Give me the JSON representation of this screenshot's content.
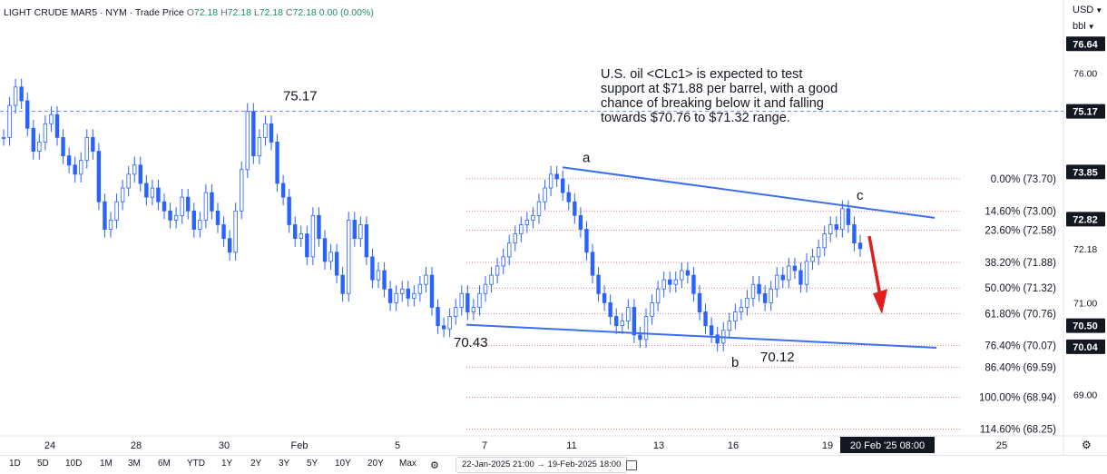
{
  "header": {
    "symbol": "LIGHT CRUDE MAR5 · NYM · Trade Price",
    "o_label": "O",
    "o": "72.18",
    "h_label": "H",
    "h": "72.18",
    "l_label": "L",
    "l": "72.18",
    "c_label": "C",
    "c": "72.18",
    "change": "0.00 (0.00%)"
  },
  "units": {
    "currency": "USD",
    "unit": "bbl"
  },
  "annotation": "U.S. oil <CLc1> is expected to test support at $71.88 per barrel, with a good chance of breaking below it and falling towards $70.76 to $71.32 range.",
  "toolbar": {
    "ranges": [
      "1D",
      "5D",
      "10D",
      "1M",
      "3M",
      "6M",
      "YTD",
      "1Y",
      "2Y",
      "3Y",
      "5Y",
      "10Y",
      "20Y",
      "Max"
    ],
    "date_range": "22-Jan-2025 21:00 → 19-Feb-2025 18:00"
  },
  "colors": {
    "candle": "#2962ff",
    "line": "#3b6ef0",
    "fib": "#e07070",
    "arrow": "#e02020",
    "axis_tag": "#131722"
  },
  "chart_data": {
    "type": "candlestick",
    "title": "LIGHT CRUDE MAR5",
    "ylim": [
      68.1,
      77.2
    ],
    "y_ticks": [
      69.0,
      71.0,
      72.18,
      76.0
    ],
    "x_ticks": [
      "24",
      "28",
      "30",
      "Feb",
      "5",
      "7",
      "11",
      "13",
      "16",
      "19",
      "25"
    ],
    "crosshair_label": "20 Feb '25  08:00",
    "price_tags": [
      {
        "label": "76.64",
        "value": 76.64
      },
      {
        "label": "75.17",
        "value": 75.17
      },
      {
        "label": "73.85",
        "value": 73.85
      },
      {
        "label": "72.82",
        "value": 72.82
      },
      {
        "label": "70.50",
        "value": 70.5
      },
      {
        "label": "70.04",
        "value": 70.04
      }
    ],
    "fib_levels": [
      {
        "label": "0.00% (73.70)",
        "value": 73.7
      },
      {
        "label": "14.60% (73.00)",
        "value": 73.0
      },
      {
        "label": "23.60% (72.58)",
        "value": 72.58
      },
      {
        "label": "38.20% (71.88)",
        "value": 71.88
      },
      {
        "label": "50.00% (71.32)",
        "value": 71.32
      },
      {
        "label": "61.80% (70.76)",
        "value": 70.76
      },
      {
        "label": "76.40% (70.07)",
        "value": 70.07
      },
      {
        "label": "86.40% (69.59)",
        "value": 69.59
      },
      {
        "label": "100.00% (68.94)",
        "value": 68.94
      },
      {
        "label": "114.60% (68.25)",
        "value": 68.25
      }
    ],
    "wave_labels": [
      {
        "label": "75.17",
        "value": 75.17
      },
      {
        "label": "70.43",
        "value": 70.43
      },
      {
        "label": "a",
        "value": 73.95
      },
      {
        "label": "b",
        "value": 70.12
      },
      {
        "label": "70.12",
        "value": 70.12
      },
      {
        "label": "c",
        "value": 73.05
      }
    ],
    "price_path": [
      74.6,
      75.3,
      75.7,
      75.4,
      74.8,
      74.3,
      74.5,
      74.9,
      75.1,
      74.6,
      74.2,
      74.0,
      73.8,
      74.1,
      74.6,
      74.3,
      73.2,
      72.6,
      72.8,
      73.2,
      73.5,
      73.8,
      74.0,
      73.6,
      73.3,
      73.5,
      73.2,
      73.0,
      72.8,
      72.9,
      73.3,
      73.0,
      72.6,
      72.8,
      73.4,
      73.0,
      72.7,
      72.4,
      72.1,
      73.0,
      73.9,
      75.17,
      74.2,
      74.6,
      74.9,
      74.5,
      73.6,
      73.3,
      72.7,
      72.4,
      72.5,
      72.0,
      72.9,
      72.4,
      71.9,
      72.1,
      71.6,
      71.2,
      72.8,
      72.4,
      72.7,
      72.0,
      71.5,
      71.7,
      71.3,
      71.0,
      71.2,
      71.3,
      71.1,
      71.2,
      71.4,
      71.6,
      70.9,
      70.5,
      70.43,
      70.7,
      70.9,
      71.2,
      70.8,
      70.9,
      71.2,
      71.4,
      71.6,
      71.8,
      72.0,
      72.3,
      72.5,
      72.7,
      72.8,
      72.9,
      73.2,
      73.5,
      73.8,
      73.7,
      73.4,
      73.2,
      72.9,
      72.6,
      72.1,
      71.6,
      71.2,
      71.0,
      70.7,
      70.5,
      70.6,
      70.9,
      70.3,
      70.2,
      70.7,
      71.0,
      71.3,
      71.5,
      71.4,
      71.5,
      71.7,
      71.6,
      71.2,
      70.8,
      70.5,
      70.3,
      70.12,
      70.4,
      70.6,
      70.8,
      70.9,
      71.1,
      71.4,
      71.2,
      71.0,
      71.3,
      71.6,
      71.5,
      71.8,
      71.7,
      71.4,
      71.9,
      72.0,
      72.2,
      72.5,
      72.7,
      72.6,
      73.05,
      72.7,
      72.3,
      72.18
    ]
  }
}
